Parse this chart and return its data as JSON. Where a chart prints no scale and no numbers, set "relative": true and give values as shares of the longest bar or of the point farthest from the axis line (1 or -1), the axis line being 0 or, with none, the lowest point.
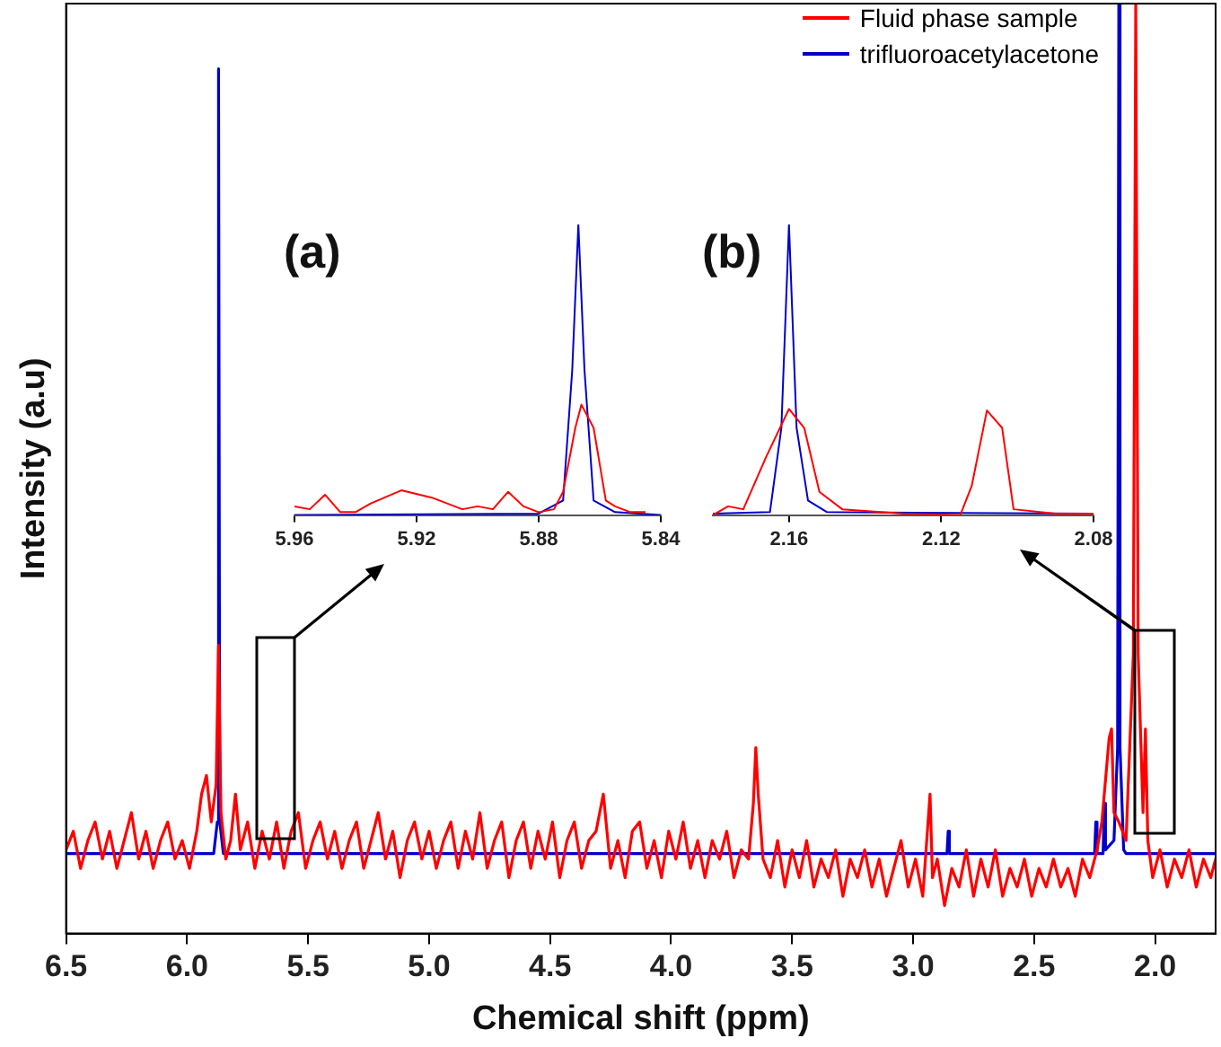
{
  "chart_data": [
    {
      "type": "line",
      "xlabel": "Chemical shift (ppm)",
      "ylabel": "Intensity (a.u)",
      "relative": true,
      "legend": "top right",
      "grid": false,
      "marker": "none",
      "line_style": "solid",
      "xlim": [
        6.5,
        1.75
      ],
      "xticks": [
        {
          "value": 6.5,
          "label": "6.5"
        },
        {
          "value": 6.0,
          "label": "6.0"
        },
        {
          "value": 5.5,
          "label": "5.5"
        },
        {
          "value": 5.0,
          "label": "5.0"
        },
        {
          "value": 4.5,
          "label": "4.5"
        },
        {
          "value": 4.0,
          "label": "4.0"
        },
        {
          "value": 3.5,
          "label": "3.5"
        },
        {
          "value": 3.0,
          "label": "3.0"
        },
        {
          "value": 2.5,
          "label": "2.5"
        },
        {
          "value": 2.0,
          "label": "2.0"
        }
      ],
      "series": [
        {
          "name": "Fluid phase sample",
          "color": "#ff0000",
          "x": [
            6.5,
            6.47,
            6.44,
            6.41,
            6.38,
            6.35,
            6.32,
            6.29,
            6.26,
            6.23,
            6.2,
            6.17,
            6.14,
            6.11,
            6.08,
            6.05,
            6.02,
            5.99,
            5.96,
            5.94,
            5.92,
            5.9,
            5.88,
            5.87,
            5.86,
            5.84,
            5.82,
            5.8,
            5.78,
            5.75,
            5.72,
            5.69,
            5.66,
            5.63,
            5.6,
            5.57,
            5.54,
            5.51,
            5.48,
            5.45,
            5.42,
            5.39,
            5.36,
            5.33,
            5.3,
            5.27,
            5.24,
            5.21,
            5.18,
            5.15,
            5.12,
            5.09,
            5.06,
            5.03,
            5.0,
            4.97,
            4.94,
            4.91,
            4.88,
            4.85,
            4.82,
            4.79,
            4.76,
            4.73,
            4.7,
            4.67,
            4.64,
            4.61,
            4.58,
            4.55,
            4.52,
            4.49,
            4.46,
            4.43,
            4.4,
            4.37,
            4.34,
            4.31,
            4.28,
            4.25,
            4.22,
            4.19,
            4.16,
            4.13,
            4.1,
            4.07,
            4.04,
            4.01,
            3.98,
            3.95,
            3.92,
            3.89,
            3.86,
            3.83,
            3.8,
            3.77,
            3.74,
            3.71,
            3.68,
            3.66,
            3.65,
            3.64,
            3.62,
            3.59,
            3.56,
            3.53,
            3.5,
            3.47,
            3.44,
            3.41,
            3.38,
            3.35,
            3.32,
            3.29,
            3.26,
            3.23,
            3.2,
            3.17,
            3.14,
            3.11,
            3.08,
            3.05,
            3.02,
            2.99,
            2.96,
            2.93,
            2.92,
            2.9,
            2.87,
            2.84,
            2.81,
            2.78,
            2.75,
            2.72,
            2.69,
            2.66,
            2.63,
            2.6,
            2.57,
            2.54,
            2.51,
            2.48,
            2.45,
            2.42,
            2.39,
            2.36,
            2.33,
            2.3,
            2.27,
            2.24,
            2.22,
            2.19,
            2.18,
            2.17,
            2.15,
            2.12,
            2.09,
            2.08,
            2.07,
            2.05,
            2.04,
            2.03,
            2.01,
            1.98,
            1.95,
            1.92,
            1.89,
            1.86,
            1.83,
            1.8,
            1.77,
            1.75
          ],
          "values": [
            0.09,
            0.11,
            0.07,
            0.1,
            0.12,
            0.08,
            0.11,
            0.07,
            0.1,
            0.13,
            0.08,
            0.11,
            0.07,
            0.1,
            0.12,
            0.08,
            0.1,
            0.07,
            0.11,
            0.15,
            0.17,
            0.12,
            0.16,
            0.31,
            0.13,
            0.08,
            0.1,
            0.15,
            0.09,
            0.12,
            0.07,
            0.11,
            0.08,
            0.12,
            0.07,
            0.11,
            0.13,
            0.07,
            0.1,
            0.12,
            0.08,
            0.11,
            0.07,
            0.1,
            0.12,
            0.07,
            0.1,
            0.13,
            0.08,
            0.11,
            0.06,
            0.1,
            0.12,
            0.08,
            0.11,
            0.07,
            0.1,
            0.12,
            0.07,
            0.11,
            0.08,
            0.13,
            0.07,
            0.1,
            0.12,
            0.06,
            0.1,
            0.12,
            0.07,
            0.11,
            0.08,
            0.12,
            0.06,
            0.1,
            0.12,
            0.07,
            0.1,
            0.11,
            0.15,
            0.07,
            0.1,
            0.06,
            0.11,
            0.12,
            0.07,
            0.1,
            0.06,
            0.11,
            0.08,
            0.12,
            0.07,
            0.1,
            0.06,
            0.1,
            0.08,
            0.11,
            0.06,
            0.09,
            0.08,
            0.14,
            0.2,
            0.15,
            0.08,
            0.06,
            0.1,
            0.05,
            0.09,
            0.06,
            0.1,
            0.05,
            0.08,
            0.06,
            0.09,
            0.04,
            0.08,
            0.06,
            0.09,
            0.05,
            0.08,
            0.04,
            0.07,
            0.1,
            0.05,
            0.08,
            0.04,
            0.15,
            0.06,
            0.08,
            0.03,
            0.07,
            0.05,
            0.09,
            0.04,
            0.08,
            0.05,
            0.09,
            0.04,
            0.07,
            0.05,
            0.08,
            0.04,
            0.07,
            0.05,
            0.08,
            0.05,
            0.07,
            0.04,
            0.08,
            0.06,
            0.09,
            0.12,
            0.21,
            0.22,
            0.13,
            0.12,
            0.1,
            0.3,
            1.0,
            0.3,
            0.13,
            0.22,
            0.1,
            0.06,
            0.09,
            0.05,
            0.08,
            0.06,
            0.09,
            0.05,
            0.08,
            0.06,
            0.08
          ]
        },
        {
          "name": "trifluoroacetylacetone",
          "color": "#0000cc",
          "x": [
            6.5,
            5.89,
            5.875,
            5.87,
            5.865,
            5.85,
            2.86,
            2.855,
            2.85,
            2.25,
            2.245,
            2.24,
            2.215,
            2.21,
            2.205,
            2.17,
            2.155,
            2.15,
            2.145,
            2.13,
            2.12,
            1.75
          ],
          "values": [
            0.086,
            0.086,
            0.12,
            0.93,
            0.12,
            0.086,
            0.086,
            0.11,
            0.086,
            0.086,
            0.12,
            0.086,
            0.086,
            0.14,
            0.09,
            0.1,
            0.2,
            1.0,
            0.2,
            0.09,
            0.086,
            0.086
          ]
        }
      ]
    },
    {
      "type": "line",
      "relative": true,
      "annotations": [
        "(a)"
      ],
      "grid": false,
      "marker": "none",
      "xlim": [
        5.96,
        5.84
      ],
      "xticks": [
        {
          "value": 5.96,
          "label": "5.96"
        },
        {
          "value": 5.92,
          "label": "5.92"
        },
        {
          "value": 5.88,
          "label": "5.88"
        },
        {
          "value": 5.84,
          "label": "5.84"
        }
      ],
      "series": [
        {
          "color": "#ff0000",
          "x": [
            5.96,
            5.955,
            5.95,
            5.945,
            5.94,
            5.935,
            5.925,
            5.915,
            5.905,
            5.9,
            5.895,
            5.89,
            5.885,
            5.88,
            5.875,
            5.872,
            5.868,
            5.866,
            5.862,
            5.858,
            5.855,
            5.85,
            5.845
          ],
          "values": [
            0.03,
            0.02,
            0.07,
            0.01,
            0.01,
            0.04,
            0.085,
            0.06,
            0.02,
            0.03,
            0.02,
            0.08,
            0.03,
            0.01,
            0.02,
            0.08,
            0.3,
            0.38,
            0.3,
            0.05,
            0.03,
            0.01,
            0.01
          ]
        },
        {
          "color": "#0000cc",
          "x": [
            5.96,
            5.88,
            5.872,
            5.869,
            5.867,
            5.865,
            5.862,
            5.855,
            5.84
          ],
          "values": [
            0,
            0.005,
            0.05,
            0.5,
            1.0,
            0.5,
            0.05,
            0.01,
            0
          ]
        }
      ]
    },
    {
      "type": "line",
      "relative": true,
      "annotations": [
        "(b)"
      ],
      "grid": false,
      "marker": "none",
      "xlim": [
        2.18,
        2.08
      ],
      "xticks": [
        {
          "value": 2.16,
          "label": "2.16"
        },
        {
          "value": 2.12,
          "label": "2.12"
        },
        {
          "value": 2.08,
          "label": "2.08"
        }
      ],
      "series": [
        {
          "color": "#ff0000",
          "x": [
            2.18,
            2.176,
            2.172,
            2.166,
            2.16,
            2.156,
            2.152,
            2.146,
            2.13,
            2.115,
            2.112,
            2.108,
            2.104,
            2.101,
            2.09,
            2.08
          ],
          "values": [
            0,
            0.03,
            0.02,
            0.2,
            0.365,
            0.3,
            0.08,
            0.02,
            0.005,
            0,
            0.1,
            0.36,
            0.3,
            0.02,
            0.005,
            0.005
          ]
        },
        {
          "color": "#0000cc",
          "x": [
            2.18,
            2.165,
            2.162,
            2.16,
            2.158,
            2.155,
            2.15,
            2.08
          ],
          "values": [
            0.005,
            0.01,
            0.3,
            1.0,
            0.3,
            0.05,
            0.01,
            0.005
          ]
        }
      ]
    }
  ]
}
